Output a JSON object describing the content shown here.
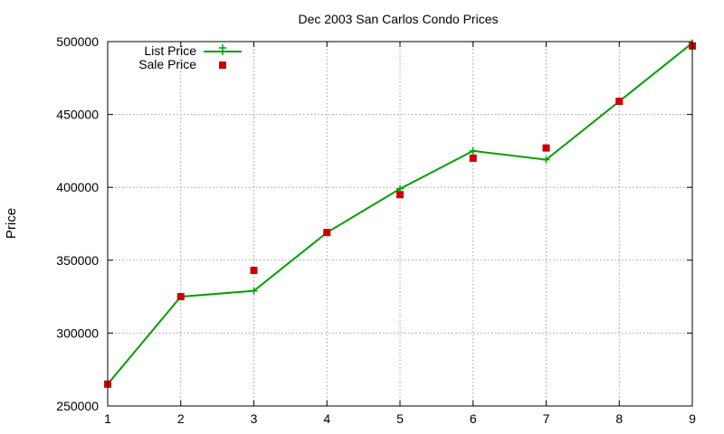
{
  "chart_data": {
    "type": "line",
    "title": "Dec 2003 San Carlos Condo Prices",
    "xlabel": "",
    "ylabel": "Price",
    "x": [
      1,
      2,
      3,
      4,
      5,
      6,
      7,
      8,
      9
    ],
    "xlim": [
      1,
      9
    ],
    "ylim": [
      250000,
      500000
    ],
    "xticks": [
      1,
      2,
      3,
      4,
      5,
      6,
      7,
      8,
      9
    ],
    "yticks": [
      250000,
      300000,
      350000,
      400000,
      450000,
      500000
    ],
    "grid": true,
    "legend_position": "top-left",
    "series": [
      {
        "name": "List Price",
        "style": "line-with-plus-markers",
        "color": "#00a000",
        "values": [
          265000,
          325000,
          329000,
          369000,
          399000,
          425000,
          419000,
          459000,
          499000
        ]
      },
      {
        "name": "Sale Price",
        "style": "square-markers",
        "color": "#cc0000",
        "values": [
          265000,
          325000,
          343000,
          369000,
          395000,
          420000,
          427000,
          459000,
          497000
        ]
      }
    ]
  }
}
